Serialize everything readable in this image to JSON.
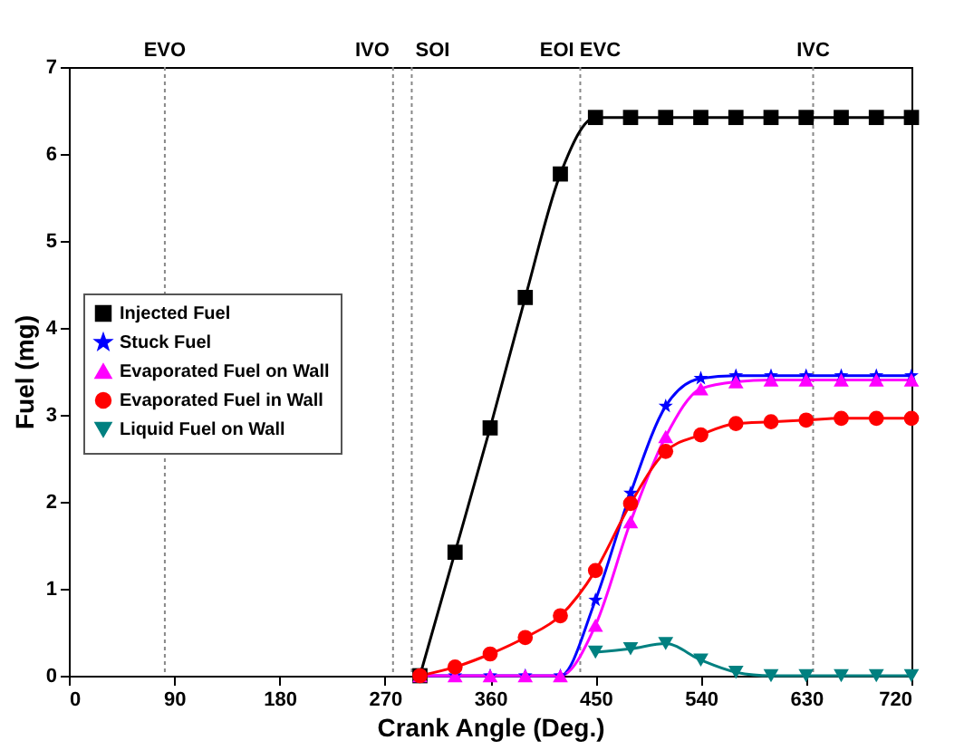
{
  "chart_data": {
    "type": "line",
    "xlabel": "Crank Angle (Deg.)",
    "ylabel": "Fuel (mg)",
    "x": [
      300,
      330,
      360,
      390,
      420,
      450,
      480,
      510,
      540,
      570,
      600,
      630,
      660,
      690,
      720
    ],
    "xlim": [
      0,
      720
    ],
    "xticks": [
      0,
      90,
      180,
      270,
      360,
      450,
      540,
      630,
      720
    ],
    "ylim": [
      0,
      7
    ],
    "yticks": [
      0,
      1,
      2,
      3,
      4,
      5,
      6,
      7
    ],
    "grid": false,
    "legend": "left",
    "series": [
      {
        "name": "Injected Fuel",
        "color": "#000000",
        "marker": "square",
        "values": [
          0,
          1.42,
          2.85,
          4.35,
          5.77,
          6.42,
          6.42,
          6.42,
          6.42,
          6.42,
          6.42,
          6.42,
          6.42,
          6.42,
          6.42
        ]
      },
      {
        "name": "Stuck Fuel",
        "color": "#0000ff",
        "marker": "star",
        "values": [
          0,
          0,
          0,
          0,
          0,
          0.87,
          2.1,
          3.1,
          3.42,
          3.45,
          3.45,
          3.45,
          3.45,
          3.45,
          3.45
        ]
      },
      {
        "name": "Evaporated Fuel on Wall",
        "color": "#ff00ff",
        "marker": "triangle",
        "values": [
          0,
          0,
          0,
          0,
          0,
          0.58,
          1.77,
          2.75,
          3.3,
          3.38,
          3.4,
          3.4,
          3.4,
          3.4,
          3.4
        ]
      },
      {
        "name": "Evaporated Fuel in Wall",
        "color": "#ff0000",
        "marker": "circle",
        "values": [
          0,
          0.1,
          0.25,
          0.44,
          0.69,
          1.21,
          1.98,
          2.58,
          2.77,
          2.9,
          2.92,
          2.94,
          2.96,
          2.96,
          2.96
        ]
      },
      {
        "name": "Liquid Fuel on Wall",
        "color": "#008080",
        "marker": "triangle-down",
        "values": [
          null,
          null,
          null,
          null,
          null,
          0.27,
          0.31,
          0.37,
          0.18,
          0.04,
          0,
          0,
          0,
          0,
          0
        ]
      }
    ],
    "ref_lines": [
      {
        "axis": "x",
        "value": 82,
        "label": "EVO",
        "line_style": "dotted"
      },
      {
        "axis": "x",
        "value": 277,
        "label": "IVO",
        "line_style": "dotted"
      },
      {
        "axis": "x",
        "value": 293,
        "label": "SOI",
        "line_style": "dotted"
      },
      {
        "axis": "x",
        "value": 437,
        "label": "EOI EVC",
        "line_style": "dotted"
      },
      {
        "axis": "x",
        "value": 636,
        "label": "IVC",
        "line_style": "dotted"
      }
    ]
  }
}
